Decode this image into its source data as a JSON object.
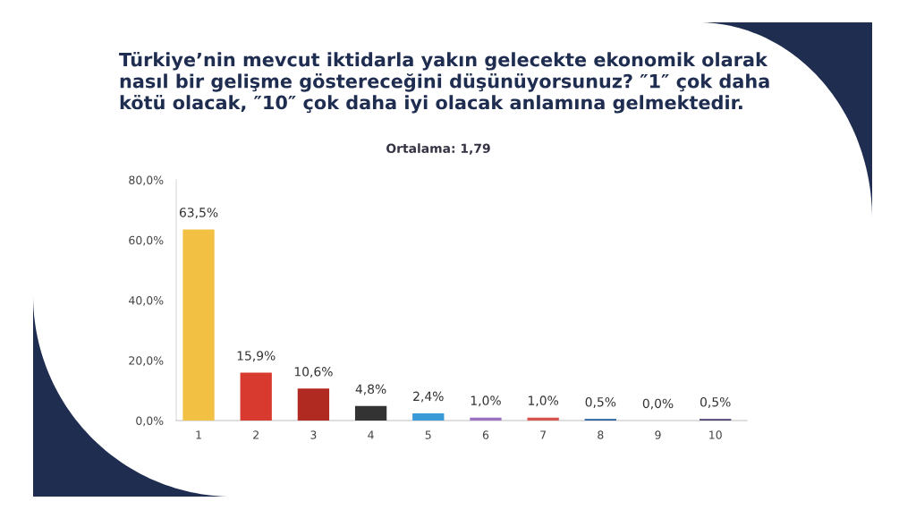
{
  "chart_data": {
    "type": "bar",
    "title": "Türkiye’nin mevcut iktidarla yakın gelecekte ekonomik olarak\nnasıl bir gelişme göstereceğini düşünüyorsunuz? ″1″ çok daha\nkötü olacak, ″10″ çok daha iyi olacak anlamına gelmektedir.",
    "subtitle": "Ortalama: 1,79",
    "categories": [
      "1",
      "2",
      "3",
      "4",
      "5",
      "6",
      "7",
      "8",
      "9",
      "10"
    ],
    "values": [
      63.5,
      15.9,
      10.6,
      4.8,
      2.4,
      1.0,
      1.0,
      0.5,
      0.0,
      0.5
    ],
    "colors": [
      "#f2c043",
      "#d93a2f",
      "#b02a22",
      "#333333",
      "#3a9ad8",
      "#9b72c2",
      "#d9544f",
      "#1f5c9e",
      "#b3281f",
      "#4b3b6e"
    ],
    "value_labels": [
      "63,5%",
      "15,9%",
      "10,6%",
      "4,8%",
      "2,4%",
      "1,0%",
      "1,0%",
      "0,5%",
      "0,0%",
      "0,5%"
    ],
    "ylim": [
      0,
      80
    ],
    "yticks": [
      {
        "value": 0,
        "label": "0,0%"
      },
      {
        "value": 20,
        "label": "20,0%"
      },
      {
        "value": 40,
        "label": "40,0%"
      },
      {
        "value": 60,
        "label": "60,0%"
      },
      {
        "value": 80,
        "label": "80,0%"
      }
    ],
    "grid": false,
    "legend": false
  }
}
